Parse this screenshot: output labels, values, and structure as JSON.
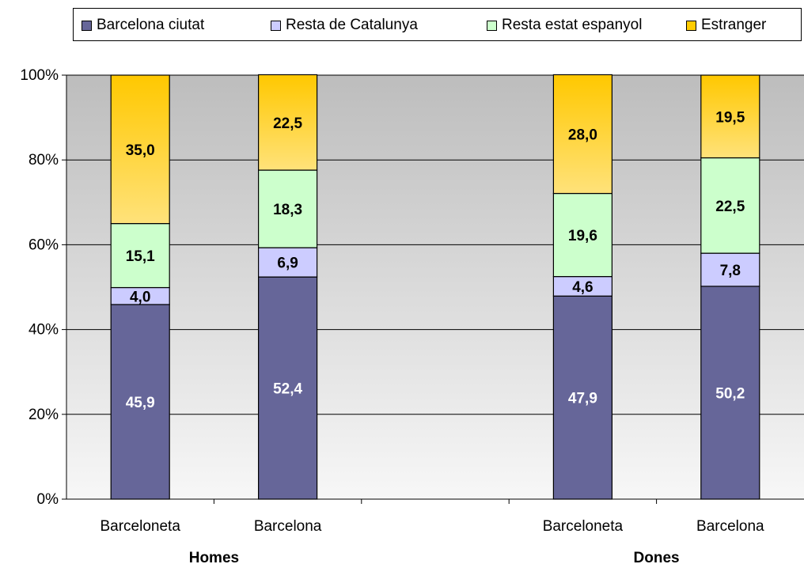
{
  "chart_data": {
    "type": "bar",
    "stacked": true,
    "percent_axis": true,
    "categories": [
      "Barceloneta",
      "Barcelona",
      "Barceloneta",
      "Barcelona"
    ],
    "groups": [
      {
        "label": "Homes",
        "categories": [
          "Barceloneta",
          "Barcelona"
        ]
      },
      {
        "label": "Dones",
        "categories": [
          "Barceloneta",
          "Barcelona"
        ]
      }
    ],
    "series": [
      {
        "name": "Barcelona ciutat",
        "color": "#666699",
        "label_color": "#ffffff",
        "values": [
          45.9,
          52.4,
          47.9,
          50.2
        ],
        "labels": [
          "45,9",
          "52,4",
          "47,9",
          "50,2"
        ]
      },
      {
        "name": "Resta de Catalunya",
        "color": "#ccccff",
        "label_color": "#000000",
        "values": [
          4.0,
          6.9,
          4.6,
          7.8
        ],
        "labels": [
          "4,0",
          "6,9",
          "4,6",
          "7,8"
        ]
      },
      {
        "name": "Resta estat espanyol",
        "color": "#ccffcc",
        "label_color": "#000000",
        "values": [
          15.1,
          18.3,
          19.6,
          22.5
        ],
        "labels": [
          "15,1",
          "18,3",
          "19,6",
          "22,5"
        ]
      },
      {
        "name": "Estranger",
        "color": "#ffcc00",
        "label_color": "#000000",
        "values": [
          35.0,
          22.5,
          28.0,
          19.5
        ],
        "labels": [
          "35,0",
          "22,5",
          "28,0",
          "19,5"
        ]
      }
    ],
    "ylim": [
      0,
      100
    ],
    "yticks": [
      "0%",
      "20%",
      "40%",
      "60%",
      "80%",
      "100%"
    ],
    "grid": true,
    "legend_position": "top"
  }
}
